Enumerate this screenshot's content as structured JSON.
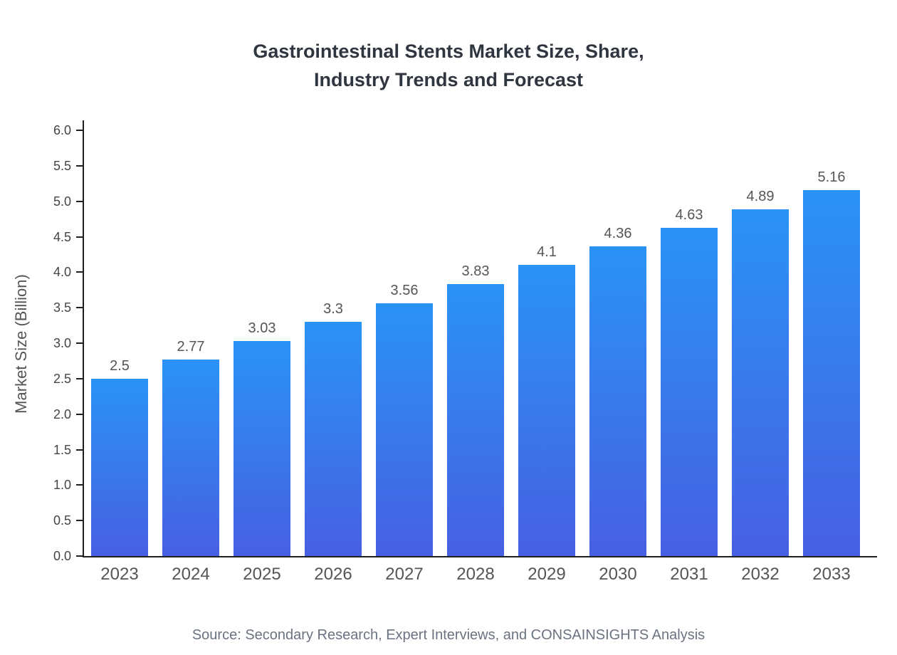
{
  "chart": {
    "title_line1": "Gastrointestinal Stents Market Size, Share,",
    "title_line2": "Industry Trends and Forecast"
  },
  "footer": {
    "source": "Source: Secondary Research, Expert Interviews, and CONSAINSIGHTS Analysis"
  },
  "chart_data": {
    "type": "bar",
    "title": "Gastrointestinal Stents Market Size, Share, Industry Trends and Forecast",
    "categories": [
      "2023",
      "2024",
      "2025",
      "2026",
      "2027",
      "2028",
      "2029",
      "2030",
      "2031",
      "2032",
      "2033"
    ],
    "values": [
      2.5,
      2.77,
      3.03,
      3.3,
      3.56,
      3.83,
      4.1,
      4.36,
      4.63,
      4.89,
      5.16
    ],
    "value_labels": [
      "2.5",
      "2.77",
      "3.03",
      "3.3",
      "3.56",
      "3.83",
      "4.1",
      "4.36",
      "4.63",
      "4.89",
      "5.16"
    ],
    "xlabel": "",
    "ylabel": "Market Size (Billion)",
    "ylim": [
      0,
      6
    ],
    "y_ticks": [
      0,
      0.5,
      1,
      1.5,
      2,
      2.5,
      3,
      3.5,
      4,
      4.5,
      5,
      5.5,
      6
    ],
    "grid": false,
    "legend": false,
    "colors": {
      "bar_gradient_top": "#2a93f6",
      "bar_gradient_bottom": "#4760e2",
      "axis": "#1f1f1f",
      "tick_label": "#444444",
      "value_label": "#555555",
      "title": "#2f3640",
      "source": "#6b7280"
    }
  }
}
